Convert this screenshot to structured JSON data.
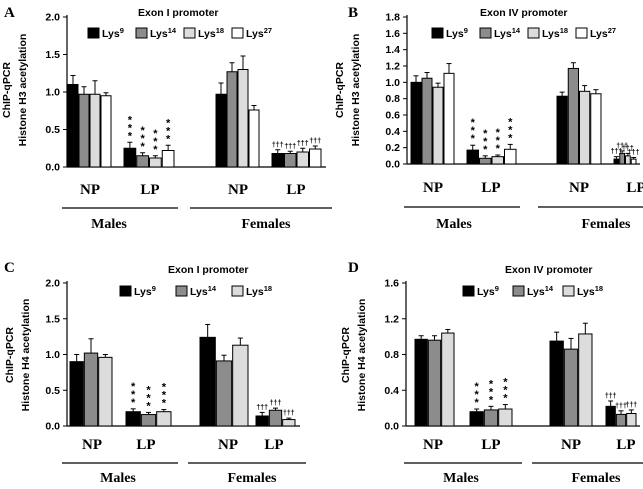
{
  "figure": {
    "legend_labels": [
      {
        "base": "Lys",
        "sup": "9"
      },
      {
        "base": "Lys",
        "sup": "14"
      },
      {
        "base": "Lys",
        "sup": "18"
      },
      {
        "base": "Lys",
        "sup": "27"
      }
    ],
    "series_colors": [
      "#000000",
      "#8c8c8c",
      "#dcdcdc",
      "#ffffff"
    ],
    "group_labels": [
      "NP",
      "LP",
      "NP",
      "LP"
    ],
    "sex_labels": [
      "Males",
      "Females"
    ],
    "sig_male": "*",
    "sig_female": "†††"
  },
  "chart_data": [
    {
      "panel": "A",
      "type": "bar",
      "title": "Exon I promoter",
      "ylabel": [
        "ChIP-qPCR",
        "Histone H3 acetylation"
      ],
      "ylim": [
        0,
        2.0
      ],
      "yticks": [
        0.0,
        0.5,
        1.0,
        1.5,
        2.0
      ],
      "ytick_labels": [
        "0.0",
        "0.5",
        "1.0",
        "1.5",
        "2.0"
      ],
      "categories": [
        "NP",
        "LP",
        "NP",
        "LP"
      ],
      "series": [
        {
          "name": "Lys9",
          "values": [
            1.1,
            0.25,
            0.97,
            0.18
          ],
          "errors": [
            0.12,
            0.08,
            0.15,
            0.05
          ]
        },
        {
          "name": "Lys14",
          "values": [
            0.97,
            0.15,
            1.27,
            0.18
          ],
          "errors": [
            0.1,
            0.04,
            0.12,
            0.03
          ]
        },
        {
          "name": "Lys18",
          "values": [
            0.97,
            0.12,
            1.3,
            0.2
          ],
          "errors": [
            0.18,
            0.03,
            0.18,
            0.05
          ]
        },
        {
          "name": "Lys27",
          "values": [
            0.95,
            0.22,
            0.76,
            0.24
          ],
          "errors": [
            0.04,
            0.07,
            0.06,
            0.04
          ]
        }
      ]
    },
    {
      "panel": "B",
      "type": "bar",
      "title": "Exon IV promoter",
      "ylabel": [
        "ChIP-qPCR",
        "Histone H3 acetylation"
      ],
      "ylim": [
        0,
        1.8
      ],
      "yticks": [
        0.0,
        0.2,
        0.4,
        0.6,
        0.8,
        1.0,
        1.2,
        1.4,
        1.6,
        1.8
      ],
      "ytick_labels": [
        "0.0",
        "0.2",
        "0.4",
        "0.6",
        "0.8",
        "1.0",
        "1.2",
        "1.4",
        "1.6",
        "1.8"
      ],
      "categories": [
        "NP",
        "LP",
        "NP",
        "LP"
      ],
      "series": [
        {
          "name": "Lys9",
          "values": [
            1.0,
            0.17,
            0.83,
            0.06
          ],
          "errors": [
            0.08,
            0.06,
            0.05,
            0.03
          ]
        },
        {
          "name": "Lys14",
          "values": [
            1.05,
            0.07,
            1.17,
            0.13
          ],
          "errors": [
            0.07,
            0.03,
            0.07,
            0.03
          ]
        },
        {
          "name": "Lys18",
          "values": [
            0.94,
            0.09,
            0.89,
            0.1
          ],
          "errors": [
            0.05,
            0.02,
            0.07,
            0.03
          ]
        },
        {
          "name": "Lys27",
          "values": [
            1.11,
            0.18,
            0.86,
            0.06
          ],
          "errors": [
            0.12,
            0.06,
            0.05,
            0.02
          ]
        }
      ]
    },
    {
      "panel": "C",
      "type": "bar",
      "title": "Exon I promoter",
      "ylabel": [
        "ChIP-qPCR",
        "Histone H4 acetylation"
      ],
      "ylim": [
        0,
        2.0
      ],
      "yticks": [
        0.0,
        0.5,
        1.0,
        1.5,
        2.0
      ],
      "ytick_labels": [
        "0.0",
        "0.5",
        "1.0",
        "1.5",
        "2.0"
      ],
      "categories": [
        "NP",
        "LP",
        "NP",
        "LP"
      ],
      "series": [
        {
          "name": "Lys9",
          "values": [
            0.9,
            0.2,
            1.24,
            0.14
          ],
          "errors": [
            0.1,
            0.04,
            0.18,
            0.05
          ]
        },
        {
          "name": "Lys14",
          "values": [
            1.02,
            0.16,
            0.91,
            0.22
          ],
          "errors": [
            0.2,
            0.03,
            0.08,
            0.03
          ]
        },
        {
          "name": "Lys18",
          "values": [
            0.96,
            0.2,
            1.13,
            0.09
          ],
          "errors": [
            0.04,
            0.03,
            0.1,
            0.02
          ]
        }
      ]
    },
    {
      "panel": "D",
      "type": "bar",
      "title": "Exon IV promoter",
      "ylabel": [
        "ChIP-qPCR",
        "Histone H4 acetylation"
      ],
      "ylim": [
        0,
        1.6
      ],
      "yticks": [
        0.0,
        0.4,
        0.8,
        1.2,
        1.6
      ],
      "ytick_labels": [
        "0.0",
        "0.4",
        "0.8",
        "1.2",
        "1.6"
      ],
      "categories": [
        "NP",
        "LP",
        "NP",
        "LP"
      ],
      "series": [
        {
          "name": "Lys9",
          "values": [
            0.97,
            0.16,
            0.95,
            0.22
          ],
          "errors": [
            0.04,
            0.03,
            0.1,
            0.06
          ]
        },
        {
          "name": "Lys14",
          "values": [
            0.96,
            0.18,
            0.86,
            0.13
          ],
          "errors": [
            0.05,
            0.04,
            0.12,
            0.04
          ]
        },
        {
          "name": "Lys18",
          "values": [
            1.04,
            0.19,
            1.03,
            0.14
          ],
          "errors": [
            0.04,
            0.05,
            0.12,
            0.04
          ]
        }
      ]
    }
  ]
}
